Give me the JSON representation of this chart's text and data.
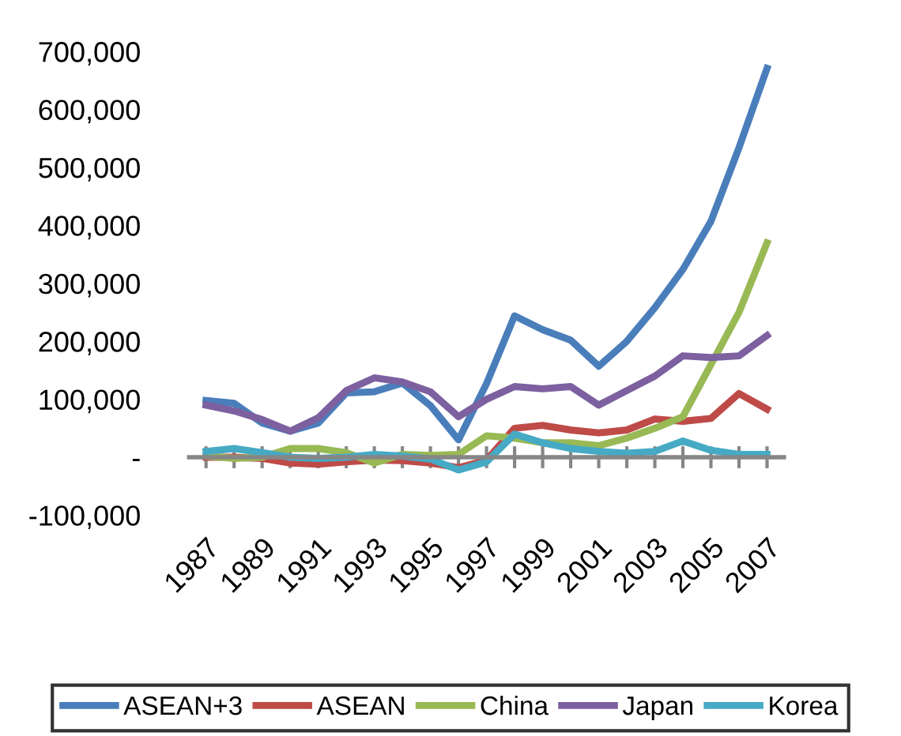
{
  "chart_data": {
    "type": "line",
    "categories": [
      "1987",
      null,
      "1989",
      null,
      "1991",
      null,
      "1993",
      null,
      "1995",
      null,
      "1997",
      null,
      "1999",
      null,
      "2001",
      null,
      "2003",
      null,
      "2005",
      null,
      "2007"
    ],
    "series": [
      {
        "name": "ASEAN+3",
        "color": "#4a7ebb",
        "values": [
          98000,
          93000,
          59000,
          45000,
          59000,
          111000,
          113000,
          128000,
          89000,
          30000,
          127000,
          244000,
          220000,
          202000,
          157000,
          200000,
          258000,
          324000,
          407000,
          534000,
          671000
        ]
      },
      {
        "name": "ASEAN",
        "color": "#be4b48",
        "values": [
          0,
          0,
          -2000,
          -10000,
          -12000,
          -8000,
          -5000,
          -6000,
          -10000,
          -18000,
          -5000,
          50000,
          55000,
          47000,
          42000,
          47000,
          66000,
          62000,
          67000,
          110000,
          83000
        ]
      },
      {
        "name": "China",
        "color": "#98b954",
        "values": [
          2000,
          -2000,
          0,
          15000,
          15000,
          8000,
          -10000,
          5000,
          3000,
          5000,
          37000,
          33000,
          25000,
          25000,
          20000,
          33000,
          50000,
          70000,
          160000,
          250000,
          370000
        ]
      },
      {
        "name": "Japan",
        "color": "#7d60a0",
        "values": [
          90000,
          80000,
          65000,
          45000,
          68000,
          115000,
          137000,
          130000,
          113000,
          70000,
          100000,
          122000,
          118000,
          122000,
          90000,
          115000,
          140000,
          175000,
          172000,
          175000,
          210000
        ]
      },
      {
        "name": "Korea",
        "color": "#46aac5",
        "values": [
          10000,
          15000,
          8000,
          0,
          -2000,
          0,
          5000,
          2000,
          -3000,
          -22000,
          -8000,
          40000,
          25000,
          15000,
          10000,
          7000,
          10000,
          28000,
          12000,
          5000,
          5000
        ]
      }
    ],
    "ylim": [
      -100000,
      700000
    ],
    "yticks": [
      {
        "value": -100000,
        "label": "-100,000"
      },
      {
        "value": 0,
        "label": "-"
      },
      {
        "value": 100000,
        "label": "100,000"
      },
      {
        "value": 200000,
        "label": "200,000"
      },
      {
        "value": 300000,
        "label": "300,000"
      },
      {
        "value": 400000,
        "label": "400,000"
      },
      {
        "value": 500000,
        "label": "500,000"
      },
      {
        "value": 600000,
        "label": "600,000"
      },
      {
        "value": 700000,
        "label": "700,000"
      }
    ],
    "legend": "bottom",
    "marker": "none",
    "line_style": "solid"
  }
}
